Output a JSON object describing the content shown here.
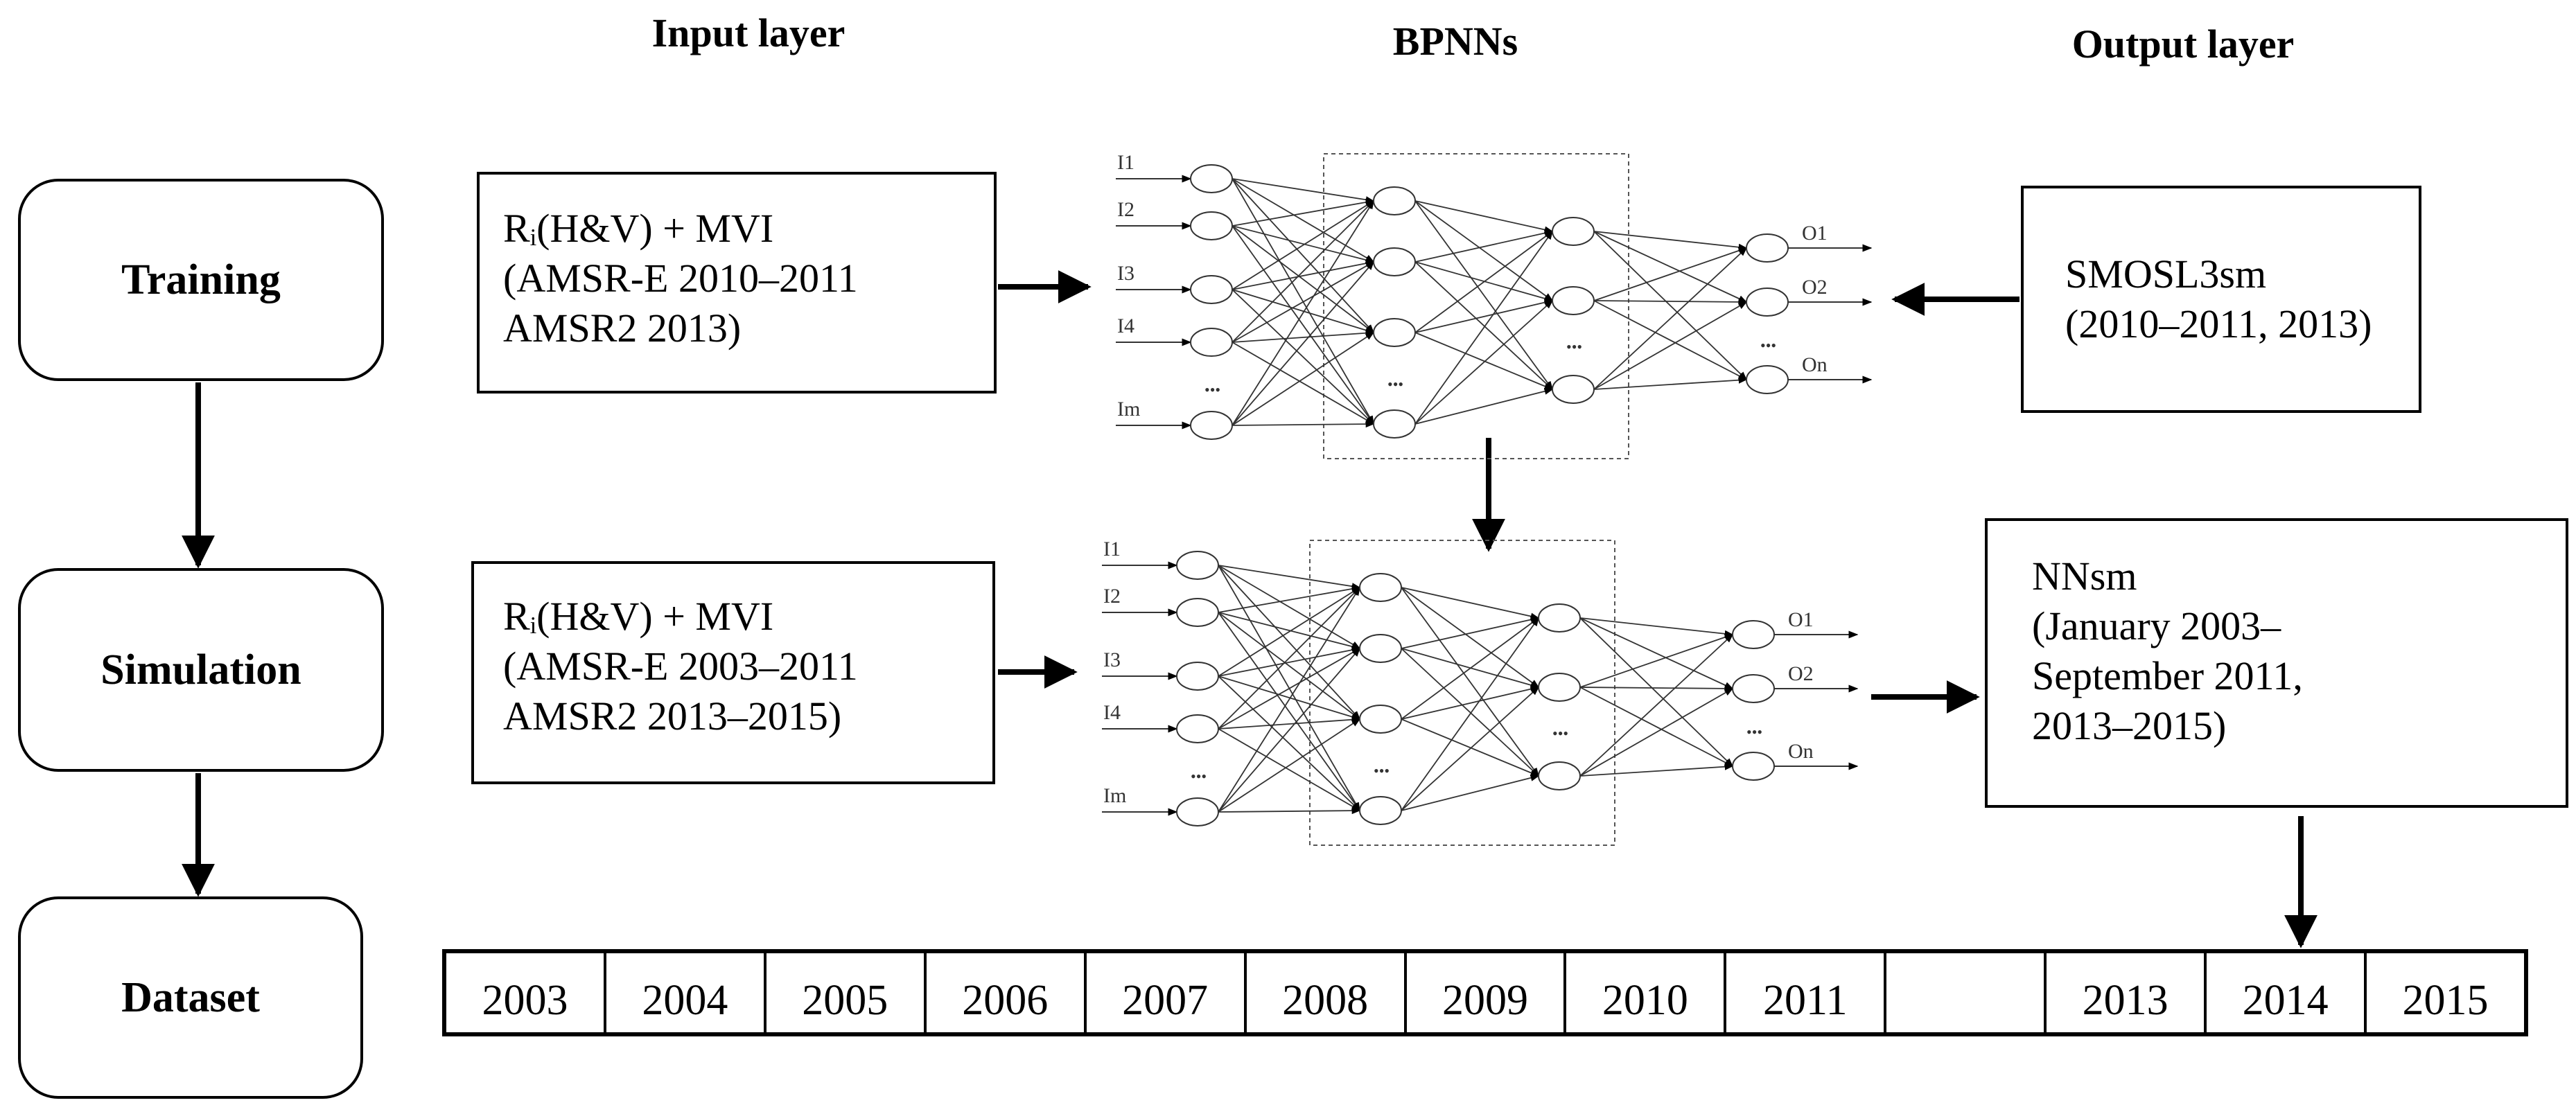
{
  "headers": {
    "input": "Input layer",
    "bpnn": "BPNNs",
    "output": "Output layer"
  },
  "stages": {
    "training": "Training",
    "simulation": "Simulation",
    "dataset": "Dataset"
  },
  "training_input": {
    "line1": "Rᵢ(H&V) + MVI",
    "line2": "(AMSR-E 2010–2011",
    "line3": "AMSR2 2013)"
  },
  "training_output": {
    "line1": "SMOSL3sm",
    "line2": "(2010–2011, 2013)"
  },
  "simulation_input": {
    "line1": "Rᵢ(H&V) + MVI",
    "line2": "(AMSR-E 2003–2011",
    "line3": "AMSR2 2013–2015)"
  },
  "simulation_output": {
    "line1": "NNsm",
    "line2": "(January 2003–",
    "line3": "September 2011,",
    "line4": "2013–2015)"
  },
  "network": {
    "inputs": [
      "I1",
      "I2",
      "I3",
      "I4",
      "Im"
    ],
    "outputs": [
      "O1",
      "O2",
      "On"
    ],
    "ellipsis": "•••"
  },
  "years": [
    "2003",
    "2004",
    "2005",
    "2006",
    "2007",
    "2008",
    "2009",
    "2010",
    "2011",
    "",
    "2013",
    "2014",
    "2015"
  ]
}
